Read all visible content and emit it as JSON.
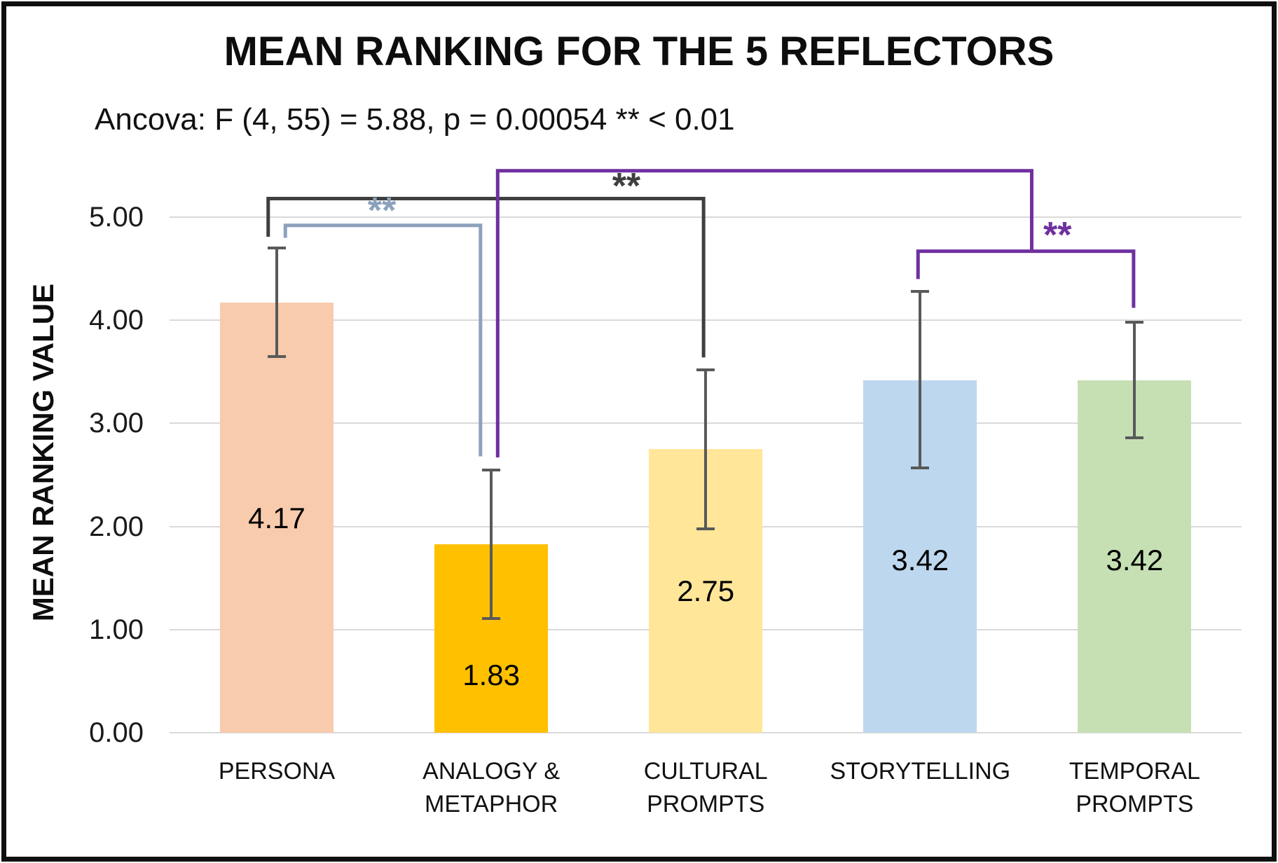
{
  "header": {
    "title": "MEAN RANKING FOR THE 5 REFLECTORS",
    "subtitle": "Ancova: F (4, 55) = 5.88, p = 0.00054 ** < 0.01"
  },
  "y_axis": {
    "title": "MEAN RANKING VALUE",
    "tick_labels": [
      "0.00",
      "1.00",
      "2.00",
      "3.00",
      "4.00",
      "5.00"
    ]
  },
  "chart_data": {
    "type": "bar",
    "title": "MEAN RANKING FOR THE 5 REFLECTORS",
    "annotation": "Ancova: F (4, 55) = 5.88, p = 0.00054 ** < 0.01",
    "xlabel": "",
    "ylabel": "MEAN RANKING VALUE",
    "ylim": [
      0,
      5
    ],
    "ytick_step": 1,
    "grid": true,
    "gridline_color": "#d9d9d9",
    "categories": [
      "PERSONA",
      "ANALOGY & METAPHOR",
      "CULTURAL PROMPTS",
      "STORYTELLING",
      "TEMPORAL PROMPTS"
    ],
    "category_lines": [
      [
        "PERSONA"
      ],
      [
        "ANALOGY &",
        "METAPHOR"
      ],
      [
        "CULTURAL",
        "PROMPTS"
      ],
      [
        "STORYTELLING"
      ],
      [
        "TEMPORAL",
        "PROMPTS"
      ]
    ],
    "values": [
      4.17,
      1.83,
      2.75,
      3.42,
      3.42
    ],
    "value_labels": [
      "4.17",
      "1.83",
      "2.75",
      "3.42",
      "3.42"
    ],
    "value_label_y": [
      2.08,
      0.56,
      1.37,
      1.67,
      1.67
    ],
    "bar_colors": [
      "#F8CBAD",
      "#FFC000",
      "#FFE699",
      "#BDD7EE",
      "#C6E0B4"
    ],
    "error_bars": {
      "color": "#595959",
      "upper": [
        4.7,
        2.55,
        3.52,
        4.28,
        3.98
      ],
      "lower": [
        3.65,
        1.11,
        1.98,
        2.57,
        2.86
      ]
    },
    "significance_brackets": [
      {
        "id": "bracket-persona-vs-cultural",
        "label": "**",
        "color": "#3F3F3F",
        "points": [
          [
            -0.04,
            4.81
          ],
          [
            -0.04,
            5.18
          ],
          [
            1.99,
            5.18
          ],
          [
            1.99,
            3.64
          ]
        ],
        "label_at": [
          1.63,
          5.3
        ]
      },
      {
        "id": "bracket-persona-vs-analogy",
        "label": "**",
        "color": "#8CA1BC",
        "points": [
          [
            0.04,
            4.8
          ],
          [
            0.04,
            4.92
          ],
          [
            0.95,
            4.92
          ],
          [
            0.95,
            2.68
          ]
        ],
        "label_at": [
          0.49,
          5.06
        ]
      },
      {
        "id": "bracket-analogy-vs-story-temporal",
        "label": "**",
        "color": "#7030A0",
        "points": [
          [
            1.03,
            2.67
          ],
          [
            1.03,
            5.45
          ],
          [
            3.52,
            5.45
          ],
          [
            3.52,
            4.67
          ]
        ],
        "label_at": [
          3.64,
          4.82
        ]
      },
      {
        "id": "bracket-story-temporal-pair",
        "label": "",
        "color": "#7030A0",
        "points": [
          [
            2.99,
            4.4
          ],
          [
            2.99,
            4.67
          ],
          [
            3.995,
            4.67
          ],
          [
            3.995,
            4.12
          ]
        ],
        "label_at": null
      }
    ]
  }
}
